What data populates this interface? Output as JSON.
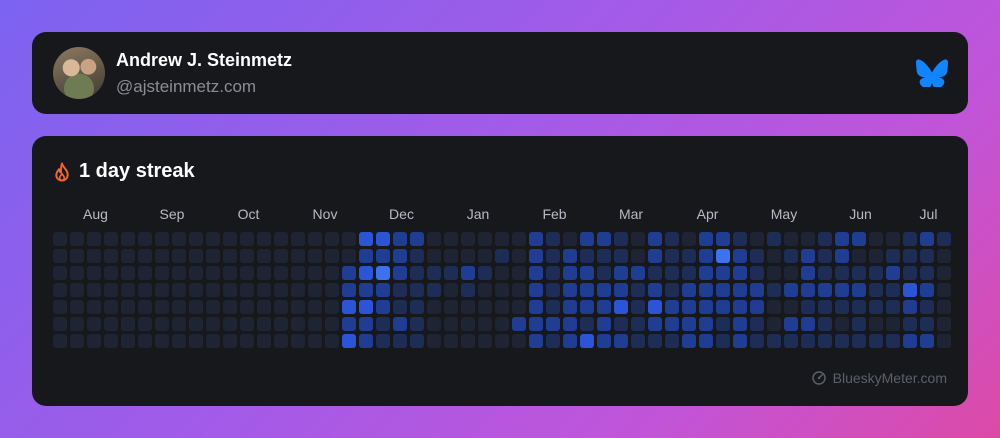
{
  "profile": {
    "name": "Andrew J. Steinmetz",
    "handle": "@ajsteinmetz.com",
    "avatar_icon": "profile-photo",
    "network_icon": "bluesky-butterfly-icon"
  },
  "streak": {
    "title": "1 day streak",
    "icon": "flame-icon",
    "months": [
      "Aug",
      "Sep",
      "Oct",
      "Nov",
      "Dec",
      "Jan",
      "Feb",
      "Mar",
      "Apr",
      "May",
      "Jun",
      "Jul"
    ],
    "month_columns": [
      2.5,
      7,
      11.5,
      16,
      20.5,
      25,
      29.5,
      34,
      38.5,
      43,
      47.5,
      51.5
    ],
    "week_columns": 53,
    "days_per_week": 7,
    "colors": {
      "empty": "#1e2433",
      "level1": "#1d2d55",
      "level2": "#1f3d93",
      "level3": "#2b55d6",
      "level4": "#3b73ee"
    },
    "activity": [
      [
        0,
        0,
        0,
        0,
        0,
        0,
        0
      ],
      [
        0,
        0,
        0,
        0,
        0,
        0,
        0
      ],
      [
        0,
        0,
        0,
        0,
        0,
        0,
        0
      ],
      [
        0,
        0,
        0,
        0,
        0,
        0,
        0
      ],
      [
        0,
        0,
        0,
        0,
        0,
        0,
        0
      ],
      [
        0,
        0,
        0,
        0,
        0,
        0,
        0
      ],
      [
        0,
        0,
        0,
        0,
        0,
        0,
        0
      ],
      [
        0,
        0,
        0,
        0,
        0,
        0,
        0
      ],
      [
        0,
        0,
        0,
        0,
        0,
        0,
        0
      ],
      [
        0,
        0,
        0,
        0,
        0,
        0,
        0
      ],
      [
        0,
        0,
        0,
        0,
        0,
        0,
        0
      ],
      [
        0,
        0,
        0,
        0,
        0,
        0,
        0
      ],
      [
        0,
        0,
        0,
        0,
        0,
        0,
        0
      ],
      [
        0,
        0,
        0,
        0,
        0,
        0,
        0
      ],
      [
        0,
        0,
        0,
        0,
        0,
        0,
        0
      ],
      [
        0,
        0,
        0,
        0,
        0,
        0,
        0
      ],
      [
        0,
        0,
        0,
        0,
        0,
        0,
        0
      ],
      [
        0,
        0,
        2,
        2,
        3,
        2,
        3
      ],
      [
        3,
        2,
        3,
        2,
        3,
        2,
        2
      ],
      [
        3,
        2,
        4,
        2,
        2,
        1,
        1
      ],
      [
        2,
        2,
        2,
        1,
        1,
        2,
        1
      ],
      [
        2,
        1,
        1,
        1,
        1,
        1,
        1
      ],
      [
        0,
        0,
        1,
        1,
        0,
        0,
        0
      ],
      [
        0,
        0,
        1,
        0,
        0,
        0,
        0
      ],
      [
        0,
        0,
        2,
        1,
        0,
        0,
        0
      ],
      [
        0,
        0,
        1,
        0,
        0,
        0,
        0
      ],
      [
        0,
        1,
        0,
        0,
        0,
        0,
        0
      ],
      [
        0,
        0,
        0,
        0,
        0,
        2,
        0
      ],
      [
        2,
        2,
        2,
        2,
        2,
        2,
        2
      ],
      [
        1,
        1,
        1,
        1,
        1,
        2,
        1
      ],
      [
        0,
        2,
        2,
        2,
        2,
        2,
        2
      ],
      [
        2,
        1,
        2,
        2,
        2,
        1,
        3
      ],
      [
        2,
        1,
        1,
        2,
        2,
        2,
        2
      ],
      [
        1,
        1,
        2,
        2,
        3,
        1,
        2
      ],
      [
        0,
        0,
        2,
        1,
        1,
        1,
        1
      ],
      [
        2,
        2,
        1,
        2,
        3,
        2,
        1
      ],
      [
        1,
        1,
        1,
        1,
        2,
        2,
        1
      ],
      [
        0,
        1,
        1,
        2,
        2,
        2,
        2
      ],
      [
        2,
        2,
        2,
        2,
        2,
        2,
        2
      ],
      [
        2,
        4,
        2,
        2,
        2,
        1,
        1
      ],
      [
        1,
        2,
        2,
        2,
        2,
        2,
        2
      ],
      [
        0,
        1,
        1,
        2,
        2,
        1,
        1
      ],
      [
        1,
        0,
        0,
        1,
        0,
        0,
        1
      ],
      [
        0,
        1,
        0,
        2,
        0,
        2,
        1
      ],
      [
        0,
        2,
        2,
        2,
        1,
        2,
        1
      ],
      [
        1,
        1,
        1,
        2,
        1,
        1,
        1
      ],
      [
        2,
        2,
        1,
        2,
        1,
        0,
        1
      ],
      [
        2,
        0,
        1,
        2,
        1,
        1,
        1
      ],
      [
        0,
        0,
        1,
        1,
        1,
        0,
        1
      ],
      [
        0,
        1,
        2,
        1,
        1,
        0,
        1
      ],
      [
        1,
        1,
        1,
        3,
        2,
        1,
        2
      ],
      [
        2,
        1,
        1,
        2,
        1,
        1,
        2
      ],
      [
        1,
        0,
        0,
        0,
        0,
        0,
        0
      ]
    ]
  },
  "footer": {
    "brand": "BlueskyMeter.com",
    "icon": "gauge-icon"
  }
}
